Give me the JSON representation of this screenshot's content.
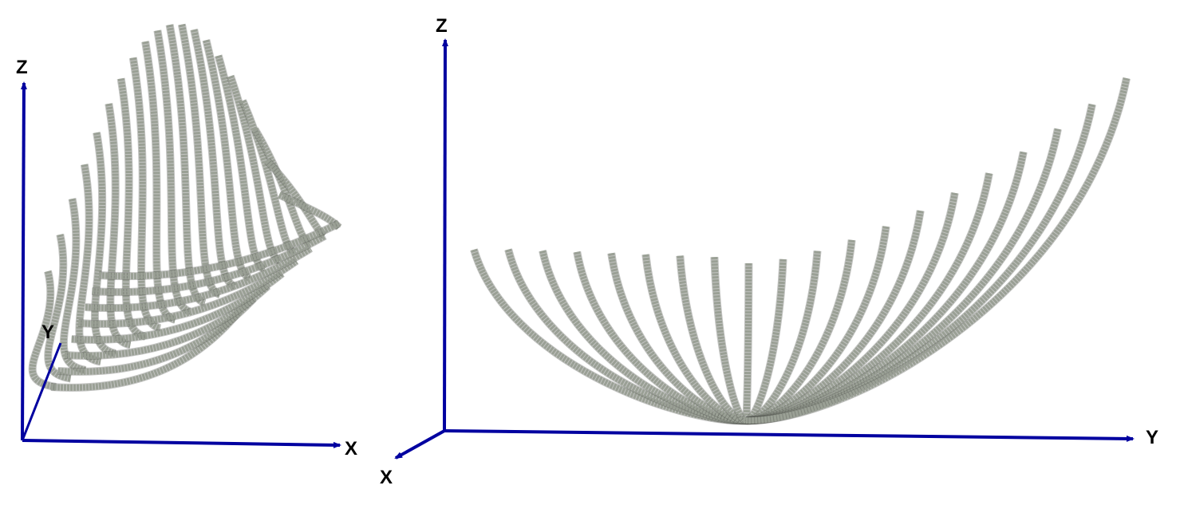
{
  "views": [
    {
      "name": "left-view",
      "axes": {
        "z": "Z",
        "y": "Y",
        "x": "X"
      }
    },
    {
      "name": "right-view",
      "axes": {
        "z": "Z",
        "x": "X",
        "y": "Y"
      }
    }
  ],
  "colors": {
    "axis": "#0000a0",
    "surface": "#9aa095",
    "surface_shadow": "#4f544c"
  },
  "curve_count": 20
}
